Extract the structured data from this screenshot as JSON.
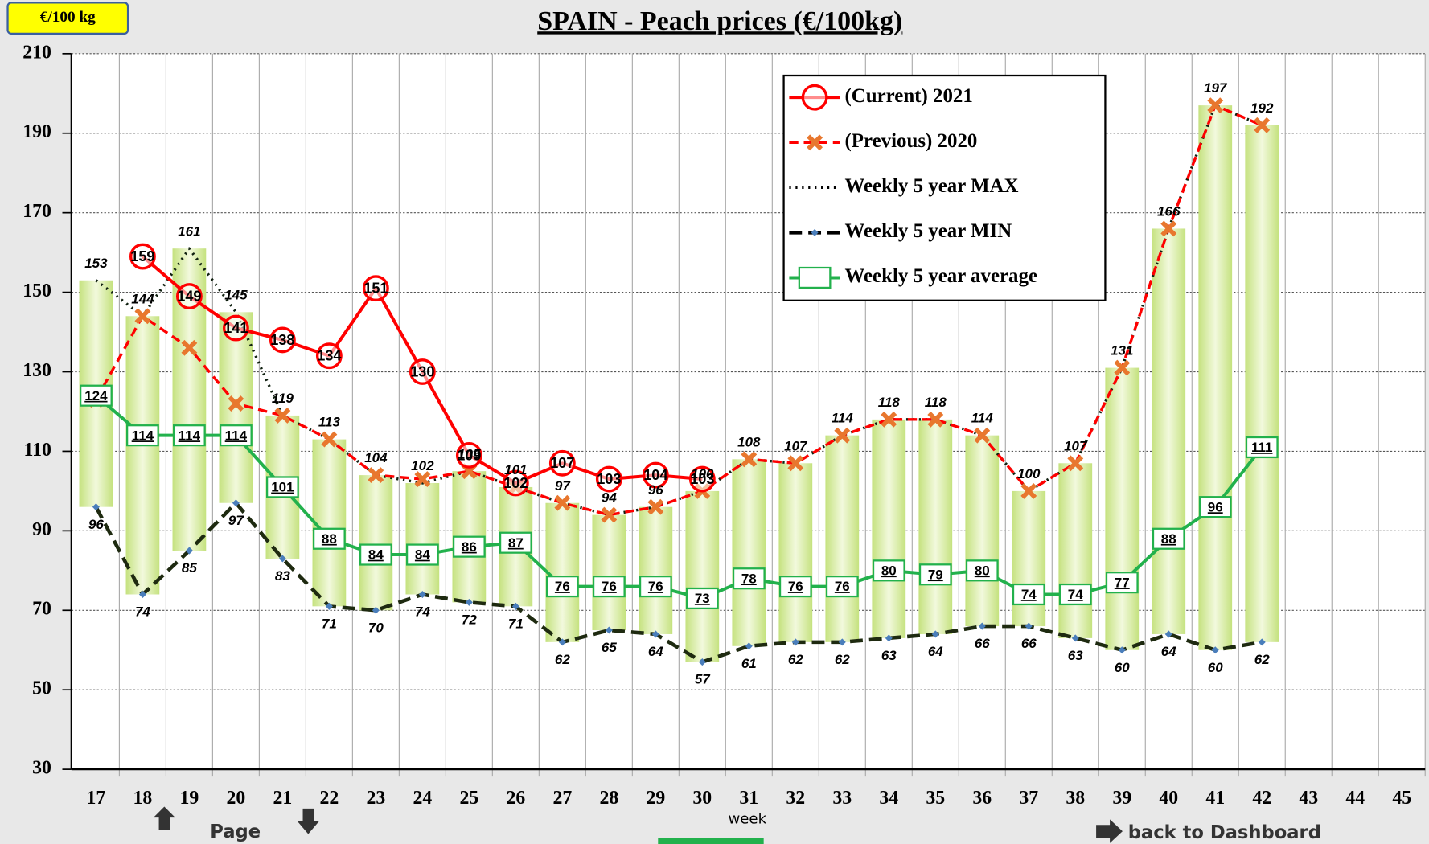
{
  "chart_data": {
    "type": "line",
    "title": "SPAIN  -  Peach prices    (€/100kg)",
    "unit_badge": "€/100 kg",
    "x_label": "week",
    "nav_page": "Page",
    "nav_dashboard": "back to Dashboard",
    "categories": [
      17,
      18,
      19,
      20,
      21,
      22,
      23,
      24,
      25,
      26,
      27,
      28,
      29,
      30,
      31,
      32,
      33,
      34,
      35,
      36,
      37,
      38,
      39,
      40,
      41,
      42,
      43,
      44,
      45
    ],
    "ylim": [
      30,
      210
    ],
    "yticks": [
      30,
      50,
      70,
      90,
      110,
      130,
      150,
      170,
      190,
      210
    ],
    "grid": true,
    "series": [
      {
        "name": "(Current) 2021",
        "color": "#ff0000",
        "values": [
          null,
          159,
          149,
          141,
          138,
          134,
          151,
          130,
          109,
          102,
          107,
          103,
          104,
          103,
          null,
          null,
          null,
          null,
          null,
          null,
          null,
          null,
          null,
          null,
          null,
          null,
          null,
          null,
          null
        ]
      },
      {
        "name": "(Previous) 2020",
        "color": "#ff0000",
        "values": [
          123,
          144,
          136,
          122,
          119,
          113,
          104,
          103,
          105,
          101,
          97,
          94,
          96,
          100,
          108,
          107,
          114,
          118,
          118,
          114,
          100,
          107,
          131,
          166,
          197,
          192,
          null,
          null,
          null
        ]
      },
      {
        "name": "Weekly 5 year MAX",
        "color": "#000000",
        "values": [
          153,
          144,
          161,
          145,
          119,
          113,
          104,
          102,
          105,
          101,
          97,
          94,
          96,
          100,
          108,
          107,
          114,
          118,
          118,
          114,
          100,
          107,
          131,
          166,
          197,
          192,
          null,
          null,
          null
        ]
      },
      {
        "name": "Weekly 5 year MIN",
        "color": "#000000",
        "values": [
          96,
          74,
          85,
          97,
          83,
          71,
          70,
          74,
          72,
          71,
          62,
          65,
          64,
          57,
          61,
          62,
          62,
          63,
          64,
          66,
          66,
          63,
          60,
          64,
          60,
          62,
          null,
          null,
          null
        ]
      },
      {
        "name": "Weekly 5 year average",
        "color": "#22b14c",
        "values": [
          124,
          114,
          114,
          114,
          101,
          88,
          84,
          84,
          86,
          87,
          76,
          76,
          76,
          73,
          78,
          76,
          76,
          80,
          79,
          80,
          74,
          74,
          77,
          88,
          96,
          111,
          null,
          null,
          null
        ]
      }
    ]
  }
}
